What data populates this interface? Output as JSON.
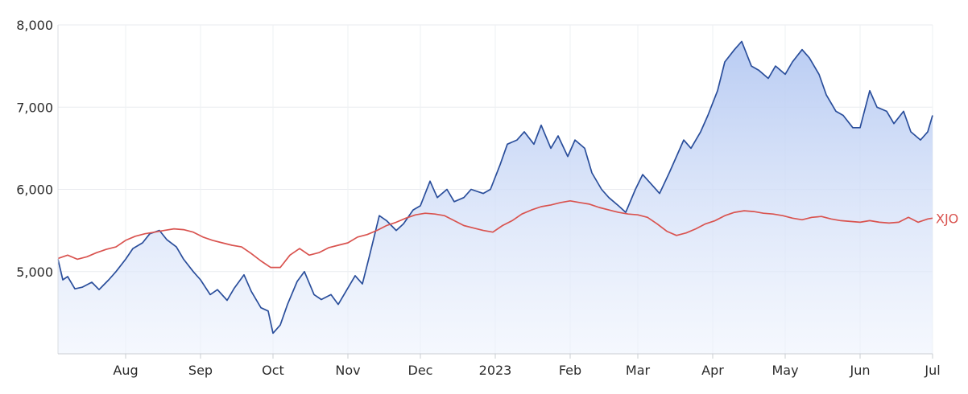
{
  "chart_data": {
    "type": "line",
    "title": "",
    "xlabel": "",
    "ylabel": "",
    "ylim": [
      4000,
      8000
    ],
    "grid": true,
    "y_ticks": [
      {
        "value": 5000,
        "label": "5,000"
      },
      {
        "value": 6000,
        "label": "6,000"
      },
      {
        "value": 7000,
        "label": "7,000"
      },
      {
        "value": 8000,
        "label": "8,000"
      }
    ],
    "x_ticks": [
      {
        "date": "2022-08-01",
        "label": "Aug"
      },
      {
        "date": "2022-09-01",
        "label": "Sep"
      },
      {
        "date": "2022-10-01",
        "label": "Oct"
      },
      {
        "date": "2022-11-01",
        "label": "Nov"
      },
      {
        "date": "2022-12-01",
        "label": "Dec"
      },
      {
        "date": "2023-01-01",
        "label": "2023"
      },
      {
        "date": "2023-02-01",
        "label": "Feb"
      },
      {
        "date": "2023-03-01",
        "label": "Mar"
      },
      {
        "date": "2023-04-01",
        "label": "Apr"
      },
      {
        "date": "2023-05-01",
        "label": "May"
      },
      {
        "date": "2023-06-01",
        "label": "Jun"
      },
      {
        "date": "2023-07-01",
        "label": "Jul"
      }
    ],
    "x_range": [
      "2022-07-04",
      "2023-07-01"
    ],
    "colors": {
      "stock": "#2a4e9b",
      "stock_fill": "#b8cbf1",
      "index": "#d9534f"
    },
    "series": [
      {
        "key": "stock",
        "fill": true,
        "points": [
          [
            "2022-07-04",
            5150
          ],
          [
            "2022-07-06",
            4900
          ],
          [
            "2022-07-08",
            4940
          ],
          [
            "2022-07-11",
            4790
          ],
          [
            "2022-07-14",
            4810
          ],
          [
            "2022-07-18",
            4870
          ],
          [
            "2022-07-21",
            4780
          ],
          [
            "2022-07-25",
            4900
          ],
          [
            "2022-07-28",
            5000
          ],
          [
            "2022-08-01",
            5150
          ],
          [
            "2022-08-04",
            5280
          ],
          [
            "2022-08-08",
            5350
          ],
          [
            "2022-08-11",
            5460
          ],
          [
            "2022-08-15",
            5500
          ],
          [
            "2022-08-18",
            5390
          ],
          [
            "2022-08-22",
            5300
          ],
          [
            "2022-08-25",
            5150
          ],
          [
            "2022-08-29",
            5000
          ],
          [
            "2022-09-01",
            4900
          ],
          [
            "2022-09-05",
            4720
          ],
          [
            "2022-09-08",
            4780
          ],
          [
            "2022-09-12",
            4650
          ],
          [
            "2022-09-15",
            4800
          ],
          [
            "2022-09-19",
            4960
          ],
          [
            "2022-09-22",
            4760
          ],
          [
            "2022-09-26",
            4560
          ],
          [
            "2022-09-29",
            4520
          ],
          [
            "2022-10-01",
            4250
          ],
          [
            "2022-10-04",
            4350
          ],
          [
            "2022-10-07",
            4600
          ],
          [
            "2022-10-11",
            4880
          ],
          [
            "2022-10-14",
            5000
          ],
          [
            "2022-10-18",
            4720
          ],
          [
            "2022-10-21",
            4660
          ],
          [
            "2022-10-25",
            4720
          ],
          [
            "2022-10-28",
            4600
          ],
          [
            "2022-11-01",
            4800
          ],
          [
            "2022-11-04",
            4950
          ],
          [
            "2022-11-07",
            4850
          ],
          [
            "2022-11-10",
            5200
          ],
          [
            "2022-11-14",
            5680
          ],
          [
            "2022-11-17",
            5620
          ],
          [
            "2022-11-21",
            5500
          ],
          [
            "2022-11-24",
            5580
          ],
          [
            "2022-11-28",
            5750
          ],
          [
            "2022-12-01",
            5800
          ],
          [
            "2022-12-05",
            6100
          ],
          [
            "2022-12-08",
            5900
          ],
          [
            "2022-12-12",
            6000
          ],
          [
            "2022-12-15",
            5850
          ],
          [
            "2022-12-19",
            5900
          ],
          [
            "2022-12-22",
            6000
          ],
          [
            "2022-12-27",
            5950
          ],
          [
            "2022-12-30",
            6000
          ],
          [
            "2023-01-03",
            6300
          ],
          [
            "2023-01-06",
            6550
          ],
          [
            "2023-01-10",
            6600
          ],
          [
            "2023-01-13",
            6700
          ],
          [
            "2023-01-17",
            6550
          ],
          [
            "2023-01-20",
            6780
          ],
          [
            "2023-01-24",
            6500
          ],
          [
            "2023-01-27",
            6650
          ],
          [
            "2023-01-31",
            6400
          ],
          [
            "2023-02-03",
            6600
          ],
          [
            "2023-02-07",
            6500
          ],
          [
            "2023-02-10",
            6200
          ],
          [
            "2023-02-14",
            6000
          ],
          [
            "2023-02-17",
            5900
          ],
          [
            "2023-02-21",
            5800
          ],
          [
            "2023-02-24",
            5720
          ],
          [
            "2023-02-28",
            6000
          ],
          [
            "2023-03-03",
            6180
          ],
          [
            "2023-03-07",
            6050
          ],
          [
            "2023-03-10",
            5950
          ],
          [
            "2023-03-14",
            6200
          ],
          [
            "2023-03-17",
            6400
          ],
          [
            "2023-03-20",
            6600
          ],
          [
            "2023-03-23",
            6500
          ],
          [
            "2023-03-27",
            6700
          ],
          [
            "2023-03-30",
            6900
          ],
          [
            "2023-04-03",
            7200
          ],
          [
            "2023-04-06",
            7550
          ],
          [
            "2023-04-10",
            7700
          ],
          [
            "2023-04-13",
            7800
          ],
          [
            "2023-04-17",
            7500
          ],
          [
            "2023-04-20",
            7450
          ],
          [
            "2023-04-24",
            7350
          ],
          [
            "2023-04-27",
            7500
          ],
          [
            "2023-05-01",
            7400
          ],
          [
            "2023-05-04",
            7550
          ],
          [
            "2023-05-08",
            7700
          ],
          [
            "2023-05-11",
            7600
          ],
          [
            "2023-05-15",
            7400
          ],
          [
            "2023-05-18",
            7150
          ],
          [
            "2023-05-22",
            6950
          ],
          [
            "2023-05-25",
            6900
          ],
          [
            "2023-05-29",
            6750
          ],
          [
            "2023-06-01",
            6750
          ],
          [
            "2023-06-05",
            7200
          ],
          [
            "2023-06-08",
            7000
          ],
          [
            "2023-06-12",
            6950
          ],
          [
            "2023-06-15",
            6800
          ],
          [
            "2023-06-19",
            6950
          ],
          [
            "2023-06-22",
            6700
          ],
          [
            "2023-06-26",
            6600
          ],
          [
            "2023-06-29",
            6700
          ],
          [
            "2023-07-01",
            6900
          ]
        ]
      },
      {
        "key": "index",
        "name": "XJO",
        "points": [
          [
            "2022-07-04",
            5160
          ],
          [
            "2022-07-08",
            5200
          ],
          [
            "2022-07-12",
            5150
          ],
          [
            "2022-07-16",
            5180
          ],
          [
            "2022-07-20",
            5230
          ],
          [
            "2022-07-24",
            5270
          ],
          [
            "2022-07-28",
            5300
          ],
          [
            "2022-08-01",
            5380
          ],
          [
            "2022-08-05",
            5430
          ],
          [
            "2022-08-09",
            5460
          ],
          [
            "2022-08-13",
            5480
          ],
          [
            "2022-08-17",
            5500
          ],
          [
            "2022-08-21",
            5520
          ],
          [
            "2022-08-25",
            5510
          ],
          [
            "2022-08-29",
            5480
          ],
          [
            "2022-09-02",
            5420
          ],
          [
            "2022-09-06",
            5380
          ],
          [
            "2022-09-10",
            5350
          ],
          [
            "2022-09-14",
            5320
          ],
          [
            "2022-09-18",
            5300
          ],
          [
            "2022-09-22",
            5220
          ],
          [
            "2022-09-26",
            5130
          ],
          [
            "2022-09-30",
            5050
          ],
          [
            "2022-10-04",
            5050
          ],
          [
            "2022-10-08",
            5200
          ],
          [
            "2022-10-12",
            5280
          ],
          [
            "2022-10-16",
            5200
          ],
          [
            "2022-10-20",
            5230
          ],
          [
            "2022-10-24",
            5290
          ],
          [
            "2022-10-28",
            5320
          ],
          [
            "2022-11-01",
            5350
          ],
          [
            "2022-11-05",
            5420
          ],
          [
            "2022-11-09",
            5450
          ],
          [
            "2022-11-13",
            5500
          ],
          [
            "2022-11-17",
            5560
          ],
          [
            "2022-11-21",
            5600
          ],
          [
            "2022-11-25",
            5650
          ],
          [
            "2022-11-29",
            5690
          ],
          [
            "2022-12-03",
            5710
          ],
          [
            "2022-12-07",
            5700
          ],
          [
            "2022-12-11",
            5680
          ],
          [
            "2022-12-15",
            5620
          ],
          [
            "2022-12-19",
            5560
          ],
          [
            "2022-12-23",
            5530
          ],
          [
            "2022-12-27",
            5500
          ],
          [
            "2022-12-31",
            5480
          ],
          [
            "2023-01-04",
            5560
          ],
          [
            "2023-01-08",
            5620
          ],
          [
            "2023-01-12",
            5700
          ],
          [
            "2023-01-16",
            5750
          ],
          [
            "2023-01-20",
            5790
          ],
          [
            "2023-01-24",
            5810
          ],
          [
            "2023-01-28",
            5840
          ],
          [
            "2023-02-01",
            5860
          ],
          [
            "2023-02-05",
            5840
          ],
          [
            "2023-02-09",
            5820
          ],
          [
            "2023-02-13",
            5780
          ],
          [
            "2023-02-17",
            5750
          ],
          [
            "2023-02-21",
            5720
          ],
          [
            "2023-02-25",
            5700
          ],
          [
            "2023-03-01",
            5690
          ],
          [
            "2023-03-05",
            5660
          ],
          [
            "2023-03-09",
            5580
          ],
          [
            "2023-03-13",
            5490
          ],
          [
            "2023-03-17",
            5440
          ],
          [
            "2023-03-21",
            5470
          ],
          [
            "2023-03-25",
            5520
          ],
          [
            "2023-03-29",
            5580
          ],
          [
            "2023-04-02",
            5620
          ],
          [
            "2023-04-06",
            5680
          ],
          [
            "2023-04-10",
            5720
          ],
          [
            "2023-04-14",
            5740
          ],
          [
            "2023-04-18",
            5730
          ],
          [
            "2023-04-22",
            5710
          ],
          [
            "2023-04-26",
            5700
          ],
          [
            "2023-04-30",
            5680
          ],
          [
            "2023-05-04",
            5650
          ],
          [
            "2023-05-08",
            5630
          ],
          [
            "2023-05-12",
            5660
          ],
          [
            "2023-05-16",
            5670
          ],
          [
            "2023-05-20",
            5640
          ],
          [
            "2023-05-24",
            5620
          ],
          [
            "2023-05-28",
            5610
          ],
          [
            "2023-06-01",
            5600
          ],
          [
            "2023-06-05",
            5620
          ],
          [
            "2023-06-09",
            5600
          ],
          [
            "2023-06-13",
            5590
          ],
          [
            "2023-06-17",
            5600
          ],
          [
            "2023-06-21",
            5660
          ],
          [
            "2023-06-25",
            5600
          ],
          [
            "2023-06-29",
            5640
          ],
          [
            "2023-07-01",
            5650
          ]
        ]
      }
    ]
  }
}
